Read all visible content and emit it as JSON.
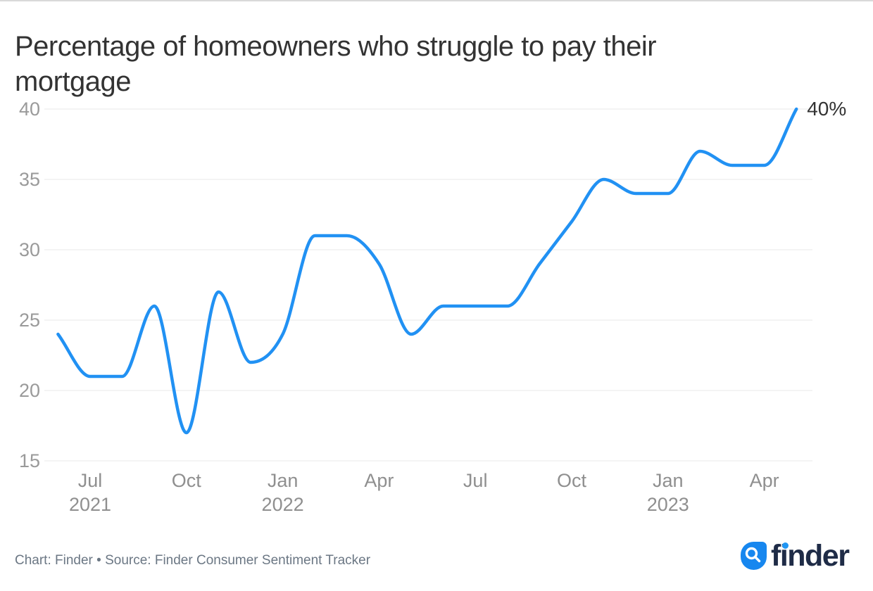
{
  "chart": {
    "title": "Percentage of homeowners who struggle to pay their mortgage",
    "end_label": "40%"
  },
  "chart_data": {
    "type": "line",
    "title": "Percentage of homeowners who struggle to pay their mortgage",
    "x": [
      "Jun 2021",
      "Jul 2021",
      "Aug 2021",
      "Sep 2021",
      "Oct 2021",
      "Nov 2021",
      "Dec 2021",
      "Jan 2022",
      "Feb 2022",
      "Mar 2022",
      "Apr 2022",
      "May 2022",
      "Jun 2022",
      "Jul 2022",
      "Aug 2022",
      "Sep 2022",
      "Oct 2022",
      "Nov 2022",
      "Dec 2022",
      "Jan 2023",
      "Feb 2023",
      "Mar 2023",
      "Apr 2023",
      "May 2023"
    ],
    "values": [
      24,
      21,
      21,
      26,
      17,
      27,
      22,
      24,
      31,
      31,
      29,
      24,
      26,
      26,
      26,
      29,
      32,
      35,
      34,
      34,
      37,
      36,
      36,
      40
    ],
    "ylim": [
      15,
      40
    ],
    "yticks": [
      15,
      20,
      25,
      30,
      35,
      40
    ],
    "xticks": [
      {
        "index": 1,
        "label": "Jul",
        "year": "2021"
      },
      {
        "index": 4,
        "label": "Oct"
      },
      {
        "index": 7,
        "label": "Jan",
        "year": "2022"
      },
      {
        "index": 10,
        "label": "Apr"
      },
      {
        "index": 13,
        "label": "Jul"
      },
      {
        "index": 16,
        "label": "Oct"
      },
      {
        "index": 19,
        "label": "Jan",
        "year": "2023"
      },
      {
        "index": 22,
        "label": "Apr"
      }
    ],
    "grid": "horizontal",
    "legend": "none",
    "line_color": "#2191f3",
    "grid_color": "#e9e9e9",
    "end_label": "40%"
  },
  "footer": {
    "credit": "Chart: Finder • Source: Finder Consumer Sentiment Tracker"
  },
  "logo": {
    "text": "finder"
  }
}
